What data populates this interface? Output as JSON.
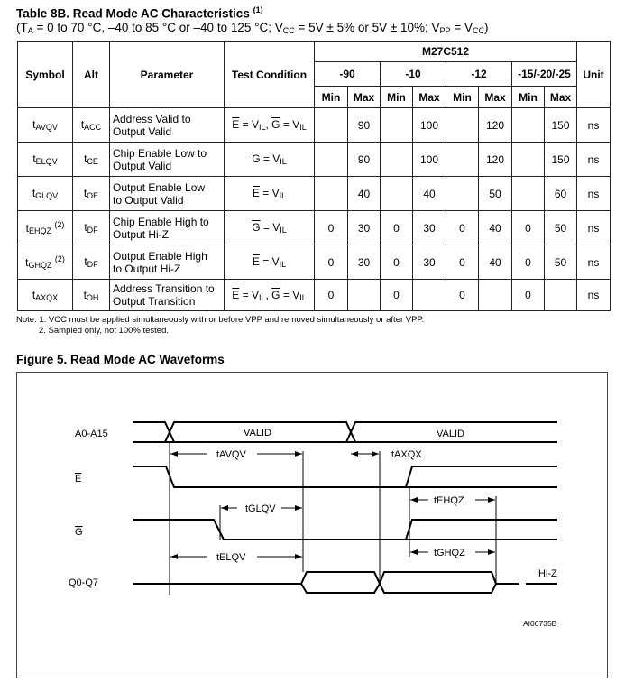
{
  "table": {
    "title": "Table 8B. Read Mode AC Characteristics",
    "title_note": "(1)",
    "subtitle_parts": [
      "(T",
      "A",
      " = 0 to 70 °C, –40 to 85 °C or –40 to 125 °C; V",
      "CC",
      " = 5V ± 5% or 5V ± 10%; V",
      "PP",
      " = V",
      "CC",
      ")"
    ],
    "headers": {
      "symbol": "Symbol",
      "alt": "Alt",
      "parameter": "Parameter",
      "test_condition": "Test Condition",
      "device": "M27C512",
      "unit": "Unit",
      "min": "Min",
      "max": "Max"
    },
    "speed_grades": [
      "-90",
      "-10",
      "-12",
      "-15/-20/-25"
    ],
    "rows": [
      {
        "sym": "AVQV",
        "sup": "",
        "alt": "ACC",
        "param": [
          "Address Valid to",
          "Output Valid"
        ],
        "cond": [
          [
            "E",
            "IL"
          ],
          [
            "G",
            "IL"
          ]
        ],
        "vals": [
          "",
          "90",
          "",
          "100",
          "",
          "120",
          "",
          "150"
        ],
        "unit": "ns"
      },
      {
        "sym": "ELQV",
        "sup": "",
        "alt": "CE",
        "param": [
          "Chip Enable Low to",
          "Output Valid"
        ],
        "cond": [
          [
            "G",
            "IL"
          ]
        ],
        "vals": [
          "",
          "90",
          "",
          "100",
          "",
          "120",
          "",
          "150"
        ],
        "unit": "ns"
      },
      {
        "sym": "GLQV",
        "sup": "",
        "alt": "OE",
        "param": [
          "Output Enable Low",
          "to Output Valid"
        ],
        "cond": [
          [
            "E",
            "IL"
          ]
        ],
        "vals": [
          "",
          "40",
          "",
          "40",
          "",
          "50",
          "",
          "60"
        ],
        "unit": "ns"
      },
      {
        "sym": "EHQZ",
        "sup": "(2)",
        "alt": "DF",
        "param": [
          "Chip Enable High to",
          "Output Hi-Z"
        ],
        "cond": [
          [
            "G",
            "IL"
          ]
        ],
        "vals": [
          "0",
          "30",
          "0",
          "30",
          "0",
          "40",
          "0",
          "50"
        ],
        "unit": "ns"
      },
      {
        "sym": "GHQZ",
        "sup": "(2)",
        "alt": "DF",
        "param": [
          "Output Enable High",
          "to Output Hi-Z"
        ],
        "cond": [
          [
            "E",
            "IL"
          ]
        ],
        "vals": [
          "0",
          "30",
          "0",
          "30",
          "0",
          "40",
          "0",
          "50"
        ],
        "unit": "ns"
      },
      {
        "sym": "AXQX",
        "sup": "",
        "alt": "OH",
        "param": [
          "Address Transition to",
          "Output Transition"
        ],
        "cond": [
          [
            "E",
            "IL"
          ],
          [
            "G",
            "IL"
          ]
        ],
        "vals": [
          "0",
          "",
          "0",
          "",
          "0",
          "",
          "0",
          ""
        ],
        "unit": "ns"
      }
    ],
    "t": "t",
    "eq": " = V",
    "sep": ", "
  },
  "notes": {
    "label": "Note:",
    "n1": "1.  VCC must be applied simultaneously with or before VPP and removed simultaneously or after VPP.",
    "n2": "2.  Sampled only, not 100% tested."
  },
  "figure": {
    "title": "Figure 5. Read Mode AC Waveforms",
    "signals": {
      "addr": "A0-A15",
      "e": "E",
      "g": "G",
      "q": "Q0-Q7"
    },
    "valid": "VALID",
    "timings": {
      "tavqv": "tAVQV",
      "taxqx": "tAXQX",
      "tehqz": "tEHQZ",
      "tglqv": "tGLQV",
      "telqv": "tELQV",
      "tghqz": "tGHQZ"
    },
    "hiz": "Hi-Z",
    "ref": "AI00735B"
  }
}
